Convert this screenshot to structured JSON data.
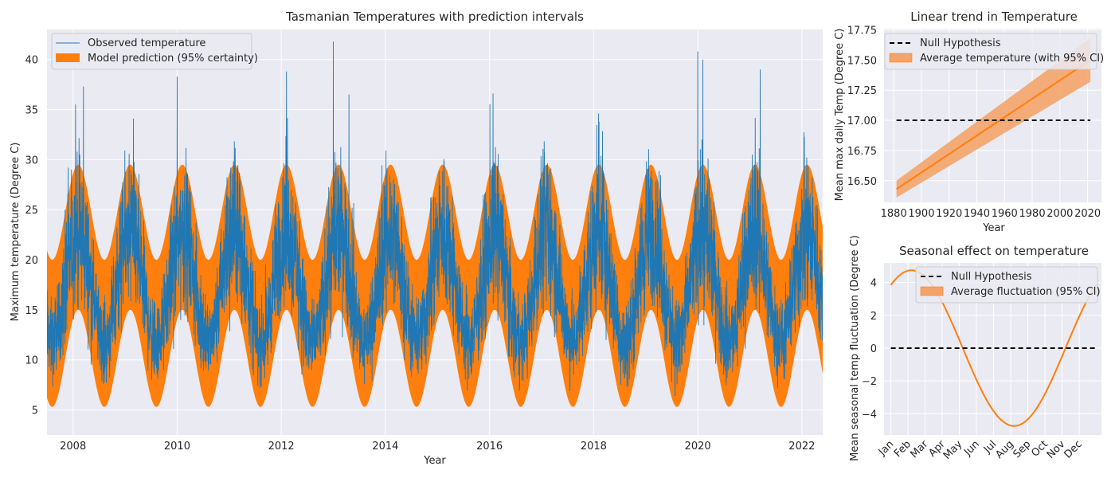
{
  "chart_data": [
    {
      "type": "line",
      "title": "Tasmanian Temperatures with prediction intervals",
      "xlabel": "Year",
      "ylabel": "Maximum temperature (Degree C)",
      "xlim": [
        2007.5,
        2022.4
      ],
      "ylim": [
        2.5,
        43
      ],
      "x_ticks": [
        2008,
        2010,
        2012,
        2014,
        2016,
        2018,
        2020,
        2022
      ],
      "y_ticks": [
        5,
        10,
        15,
        20,
        25,
        30,
        35,
        40
      ],
      "legend_position": "top-left",
      "series": [
        {
          "name": "Observed temperature",
          "kind": "line",
          "color": "#1f77b4"
        },
        {
          "name": "Model prediction (95% certainty)",
          "kind": "band",
          "color": "#ff7f0e"
        }
      ],
      "band_peaks": {
        "upper_max": 29.5,
        "upper_min": 20.0,
        "lower_max": 15.0,
        "lower_min": 5.3,
        "peak_month": "Feb"
      },
      "observed_extremes": [
        {
          "x": 2008.05,
          "y": 35.5
        },
        {
          "x": 2008.2,
          "y": 37.3
        },
        {
          "x": 2010.0,
          "y": 38.3
        },
        {
          "x": 2012.1,
          "y": 38.8
        },
        {
          "x": 2013.0,
          "y": 41.8
        },
        {
          "x": 2013.3,
          "y": 36.5
        },
        {
          "x": 2020.0,
          "y": 40.8
        },
        {
          "x": 2020.1,
          "y": 40.0
        },
        {
          "x": 2021.2,
          "y": 39.0
        }
      ]
    },
    {
      "type": "line",
      "title": "Linear trend in Temperature",
      "xlabel": "Year",
      "ylabel": "Mean max daily Temp (Degree C)",
      "xlim": [
        1873,
        2030
      ],
      "ylim": [
        16.32,
        17.76
      ],
      "x_ticks": [
        1880,
        1900,
        1920,
        1940,
        1960,
        1980,
        2000,
        2020
      ],
      "y_ticks": [
        16.5,
        16.75,
        17.0,
        17.25,
        17.5,
        17.75
      ],
      "y_tick_labels": [
        "16.50",
        "16.75",
        "17.00",
        "17.25",
        "17.50",
        "17.75"
      ],
      "legend_position": "top-left",
      "series": [
        {
          "name": "Null Hypothesis",
          "kind": "dashed",
          "color": "#000000",
          "x": [
            1882,
            2022
          ],
          "y": [
            17.0,
            17.0
          ]
        },
        {
          "name": "",
          "kind": "line",
          "color": "#ff7f0e",
          "x": [
            1882,
            2022
          ],
          "y": [
            16.43,
            17.5
          ]
        },
        {
          "name": "Average temperature (with 95% CI)",
          "kind": "band",
          "color": "#f4a46a",
          "x": [
            1882,
            2022
          ],
          "lower": [
            16.36,
            17.32
          ],
          "upper": [
            16.5,
            17.68
          ]
        }
      ]
    },
    {
      "type": "line",
      "title": "Seasonal effect on temperature",
      "xlabel": "",
      "ylabel": "Mean seasonal temp fluctuation (Degree C)",
      "xlim": [
        0.6,
        13.3
      ],
      "ylim": [
        -5.3,
        5.2
      ],
      "x_ticks": [
        1,
        2,
        3,
        4,
        5,
        6,
        7,
        8,
        9,
        10,
        11,
        12
      ],
      "x_tick_labels": [
        "Jan",
        "Feb",
        "Mar",
        "Apr",
        "May",
        "Jun",
        "Jul",
        "Aug",
        "Sep",
        "Oct",
        "Nov",
        "Dec"
      ],
      "y_ticks": [
        -4,
        -2,
        0,
        2,
        4
      ],
      "legend_position": "top-right",
      "series": [
        {
          "name": "Null Hypothesis",
          "kind": "dashed",
          "color": "#000000",
          "x": [
            1,
            13
          ],
          "y": [
            0,
            0
          ]
        },
        {
          "name": "",
          "kind": "line",
          "color": "#ff7f0e",
          "amplitude": 4.75,
          "peak_month": 2.2,
          "x_range": [
            1,
            13
          ]
        },
        {
          "name": "Average fluctuation (95% CI)",
          "kind": "band",
          "color": "#f4a46a"
        }
      ]
    }
  ]
}
